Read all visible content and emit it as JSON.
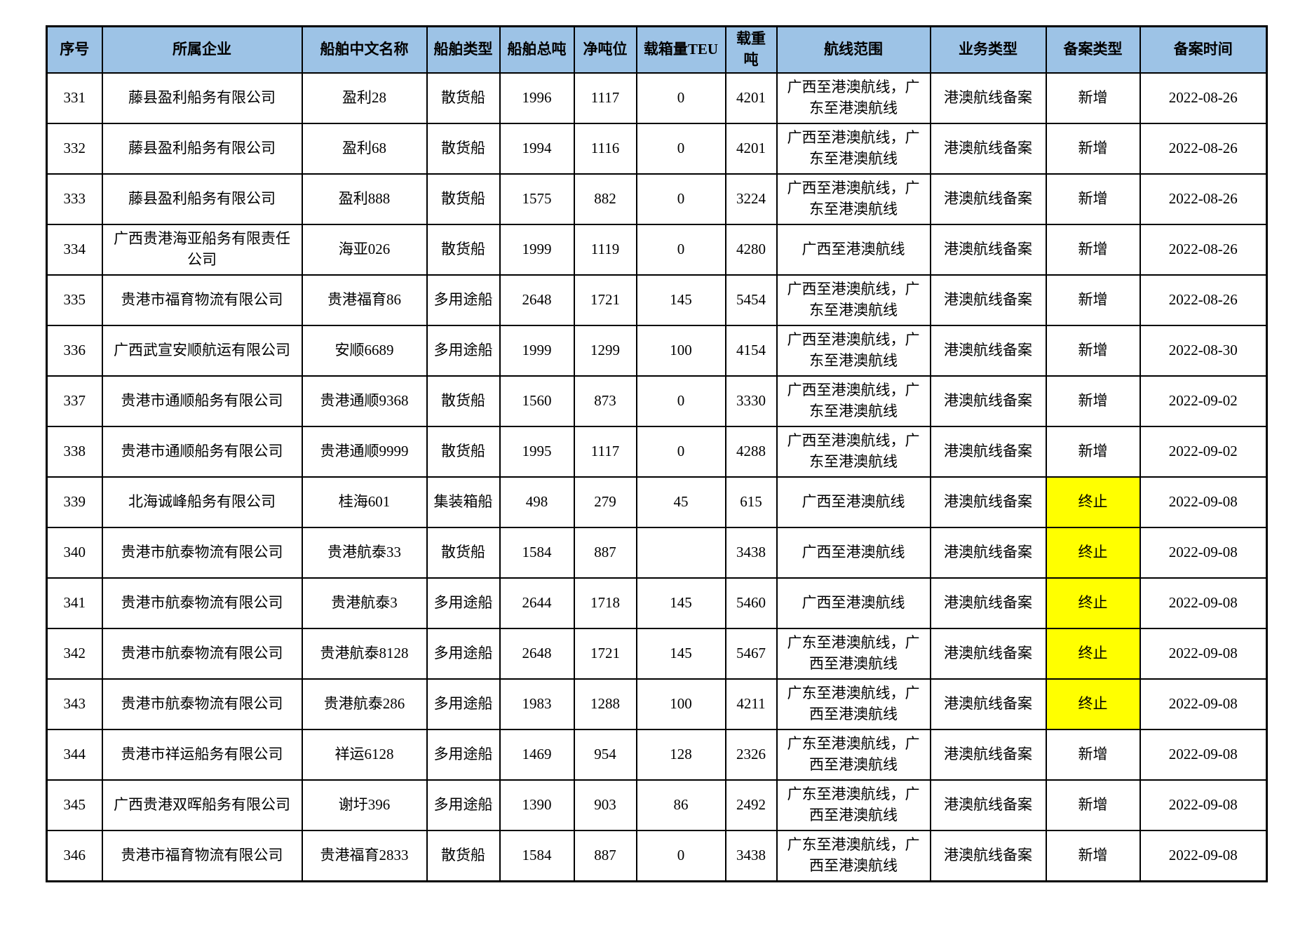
{
  "table": {
    "header_bg": "#9DC3E6",
    "highlight_color": "#FFFF00",
    "headers": [
      {
        "key": "seq",
        "label": "序号"
      },
      {
        "key": "company",
        "label": "所属企业"
      },
      {
        "key": "ship_name",
        "label": "船舶中文名称"
      },
      {
        "key": "ship_type",
        "label": "船舶类型"
      },
      {
        "key": "gross_tonnage",
        "label": "船舶总吨"
      },
      {
        "key": "net_tonnage",
        "label": "净吨位"
      },
      {
        "key": "teu",
        "label": "载箱量TEU"
      },
      {
        "key": "deadweight",
        "label": "载重吨"
      },
      {
        "key": "route",
        "label": "航线范围"
      },
      {
        "key": "business_type",
        "label": "业务类型"
      },
      {
        "key": "record_type",
        "label": "备案类型"
      },
      {
        "key": "record_date",
        "label": "备案时间"
      }
    ],
    "rows": [
      {
        "seq": "331",
        "company": "藤县盈利船务有限公司",
        "ship_name": "盈利28",
        "ship_type": "散货船",
        "gross_tonnage": "1996",
        "net_tonnage": "1117",
        "teu": "0",
        "deadweight": "4201",
        "route": "广西至港澳航线，广东至港澳航线",
        "business_type": "港澳航线备案",
        "record_type": "新增",
        "record_type_highlight": false,
        "record_date": "2022-08-26"
      },
      {
        "seq": "332",
        "company": "藤县盈利船务有限公司",
        "ship_name": "盈利68",
        "ship_type": "散货船",
        "gross_tonnage": "1994",
        "net_tonnage": "1116",
        "teu": "0",
        "deadweight": "4201",
        "route": "广西至港澳航线，广东至港澳航线",
        "business_type": "港澳航线备案",
        "record_type": "新增",
        "record_type_highlight": false,
        "record_date": "2022-08-26"
      },
      {
        "seq": "333",
        "company": "藤县盈利船务有限公司",
        "ship_name": "盈利888",
        "ship_type": "散货船",
        "gross_tonnage": "1575",
        "net_tonnage": "882",
        "teu": "0",
        "deadweight": "3224",
        "route": "广西至港澳航线，广东至港澳航线",
        "business_type": "港澳航线备案",
        "record_type": "新增",
        "record_type_highlight": false,
        "record_date": "2022-08-26"
      },
      {
        "seq": "334",
        "company": "广西贵港海亚船务有限责任公司",
        "ship_name": "海亚026",
        "ship_type": "散货船",
        "gross_tonnage": "1999",
        "net_tonnage": "1119",
        "teu": "0",
        "deadweight": "4280",
        "route": "广西至港澳航线",
        "business_type": "港澳航线备案",
        "record_type": "新增",
        "record_type_highlight": false,
        "record_date": "2022-08-26"
      },
      {
        "seq": "335",
        "company": "贵港市福育物流有限公司",
        "ship_name": "贵港福育86",
        "ship_type": "多用途船",
        "gross_tonnage": "2648",
        "net_tonnage": "1721",
        "teu": "145",
        "deadweight": "5454",
        "route": "广西至港澳航线，广东至港澳航线",
        "business_type": "港澳航线备案",
        "record_type": "新增",
        "record_type_highlight": false,
        "record_date": "2022-08-26"
      },
      {
        "seq": "336",
        "company": "广西武宣安顺航运有限公司",
        "ship_name": "安顺6689",
        "ship_type": "多用途船",
        "gross_tonnage": "1999",
        "net_tonnage": "1299",
        "teu": "100",
        "deadweight": "4154",
        "route": "广西至港澳航线，广东至港澳航线",
        "business_type": "港澳航线备案",
        "record_type": "新增",
        "record_type_highlight": false,
        "record_date": "2022-08-30"
      },
      {
        "seq": "337",
        "company": "贵港市通顺船务有限公司",
        "ship_name": "贵港通顺9368",
        "ship_type": "散货船",
        "gross_tonnage": "1560",
        "net_tonnage": "873",
        "teu": "0",
        "deadweight": "3330",
        "route": "广西至港澳航线，广东至港澳航线",
        "business_type": "港澳航线备案",
        "record_type": "新增",
        "record_type_highlight": false,
        "record_date": "2022-09-02"
      },
      {
        "seq": "338",
        "company": "贵港市通顺船务有限公司",
        "ship_name": "贵港通顺9999",
        "ship_type": "散货船",
        "gross_tonnage": "1995",
        "net_tonnage": "1117",
        "teu": "0",
        "deadweight": "4288",
        "route": "广西至港澳航线，广东至港澳航线",
        "business_type": "港澳航线备案",
        "record_type": "新增",
        "record_type_highlight": false,
        "record_date": "2022-09-02"
      },
      {
        "seq": "339",
        "company": "北海诚峰船务有限公司",
        "ship_name": "桂海601",
        "ship_type": "集装箱船",
        "gross_tonnage": "498",
        "net_tonnage": "279",
        "teu": "45",
        "deadweight": "615",
        "route": "广西至港澳航线",
        "business_type": "港澳航线备案",
        "record_type": "终止",
        "record_type_highlight": true,
        "record_date": "2022-09-08"
      },
      {
        "seq": "340",
        "company": "贵港市航泰物流有限公司",
        "ship_name": "贵港航泰33",
        "ship_type": "散货船",
        "gross_tonnage": "1584",
        "net_tonnage": "887",
        "teu": "",
        "deadweight": "3438",
        "route": "广西至港澳航线",
        "business_type": "港澳航线备案",
        "record_type": "终止",
        "record_type_highlight": true,
        "record_date": "2022-09-08"
      },
      {
        "seq": "341",
        "company": "贵港市航泰物流有限公司",
        "ship_name": "贵港航泰3",
        "ship_type": "多用途船",
        "gross_tonnage": "2644",
        "net_tonnage": "1718",
        "teu": "145",
        "deadweight": "5460",
        "route": "广西至港澳航线",
        "business_type": "港澳航线备案",
        "record_type": "终止",
        "record_type_highlight": true,
        "record_date": "2022-09-08"
      },
      {
        "seq": "342",
        "company": "贵港市航泰物流有限公司",
        "ship_name": "贵港航泰8128",
        "ship_type": "多用途船",
        "gross_tonnage": "2648",
        "net_tonnage": "1721",
        "teu": "145",
        "deadweight": "5467",
        "route": "广东至港澳航线，广西至港澳航线",
        "business_type": "港澳航线备案",
        "record_type": "终止",
        "record_type_highlight": true,
        "record_date": "2022-09-08"
      },
      {
        "seq": "343",
        "company": "贵港市航泰物流有限公司",
        "ship_name": "贵港航泰286",
        "ship_type": "多用途船",
        "gross_tonnage": "1983",
        "net_tonnage": "1288",
        "teu": "100",
        "deadweight": "4211",
        "route": "广东至港澳航线，广西至港澳航线",
        "business_type": "港澳航线备案",
        "record_type": "终止",
        "record_type_highlight": true,
        "record_date": "2022-09-08"
      },
      {
        "seq": "344",
        "company": "贵港市祥运船务有限公司",
        "ship_name": "祥运6128",
        "ship_type": "多用途船",
        "gross_tonnage": "1469",
        "net_tonnage": "954",
        "teu": "128",
        "deadweight": "2326",
        "route": "广东至港澳航线，广西至港澳航线",
        "business_type": "港澳航线备案",
        "record_type": "新增",
        "record_type_highlight": false,
        "record_date": "2022-09-08"
      },
      {
        "seq": "345",
        "company": "广西贵港双晖船务有限公司",
        "ship_name": "谢圩396",
        "ship_type": "多用途船",
        "gross_tonnage": "1390",
        "net_tonnage": "903",
        "teu": "86",
        "deadweight": "2492",
        "route": "广东至港澳航线，广西至港澳航线",
        "business_type": "港澳航线备案",
        "record_type": "新增",
        "record_type_highlight": false,
        "record_date": "2022-09-08"
      },
      {
        "seq": "346",
        "company": "贵港市福育物流有限公司",
        "ship_name": "贵港福育2833",
        "ship_type": "散货船",
        "gross_tonnage": "1584",
        "net_tonnage": "887",
        "teu": "0",
        "deadweight": "3438",
        "route": "广东至港澳航线，广西至港澳航线",
        "business_type": "港澳航线备案",
        "record_type": "新增",
        "record_type_highlight": false,
        "record_date": "2022-09-08"
      }
    ]
  }
}
